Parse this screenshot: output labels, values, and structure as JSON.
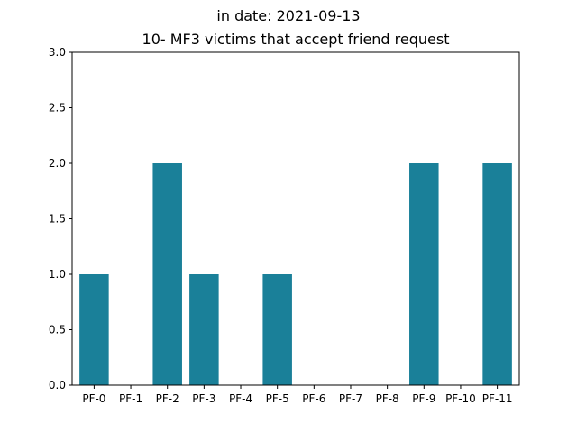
{
  "chart_data": {
    "type": "bar",
    "suptitle": "in date: 2021-09-13",
    "title": "10- MF3 victims that accept friend request",
    "xlabel": "",
    "ylabel": "",
    "categories": [
      "PF-0",
      "PF-1",
      "PF-2",
      "PF-3",
      "PF-4",
      "PF-5",
      "PF-6",
      "PF-7",
      "PF-8",
      "PF-9",
      "PF-10",
      "PF-11"
    ],
    "values": [
      1,
      0,
      2,
      1,
      0,
      1,
      0,
      0,
      0,
      2,
      0,
      2
    ],
    "ylim": [
      0,
      3.0
    ],
    "yticks": [
      "0.0",
      "0.5",
      "1.0",
      "1.5",
      "2.0",
      "2.5",
      "3.0"
    ],
    "bar_color": "#1a8099",
    "grid": false,
    "legend": "none"
  }
}
